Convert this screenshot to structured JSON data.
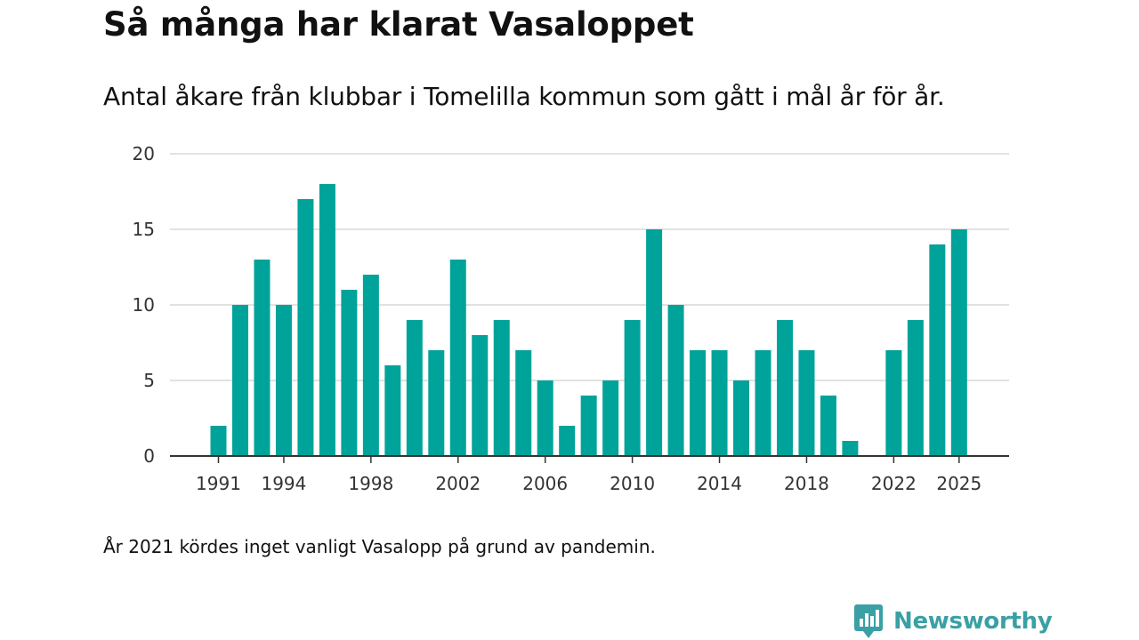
{
  "chart_data": {
    "type": "bar",
    "title": "Så många har klarat Vasaloppet",
    "subtitle": "Antal åkare från klubbar i Tomelilla kommun som gått i mål år för år.",
    "xlabel": "",
    "ylabel": "",
    "ylim": [
      0,
      20
    ],
    "yticks": [
      "0",
      "5",
      "10",
      "15",
      "20"
    ],
    "xtick_labels": [
      "1991",
      "1994",
      "1998",
      "2002",
      "2006",
      "2010",
      "2014",
      "2018",
      "2022",
      "2025"
    ],
    "categories": [
      "1991",
      "1992",
      "1993",
      "1994",
      "1995",
      "1996",
      "1997",
      "1998",
      "1999",
      "2000",
      "2001",
      "2002",
      "2003",
      "2004",
      "2005",
      "2006",
      "2007",
      "2008",
      "2009",
      "2010",
      "2011",
      "2012",
      "2013",
      "2014",
      "2015",
      "2016",
      "2017",
      "2018",
      "2019",
      "2020",
      "2021",
      "2022",
      "2023",
      "2024",
      "2025"
    ],
    "values": [
      2,
      10,
      13,
      10,
      17,
      18,
      11,
      12,
      6,
      9,
      7,
      13,
      8,
      9,
      7,
      5,
      2,
      4,
      5,
      9,
      15,
      10,
      7,
      7,
      5,
      7,
      9,
      7,
      4,
      1,
      null,
      7,
      9,
      14,
      15
    ],
    "color": "#00a39a",
    "grid": true,
    "note": "År 2021 kördes inget vanligt Vasalopp på grund av pandemin."
  },
  "brand": {
    "name": "Newsworthy",
    "color": "#3aa0a4",
    "icon": "bar-chart-speech-bubble-icon"
  }
}
